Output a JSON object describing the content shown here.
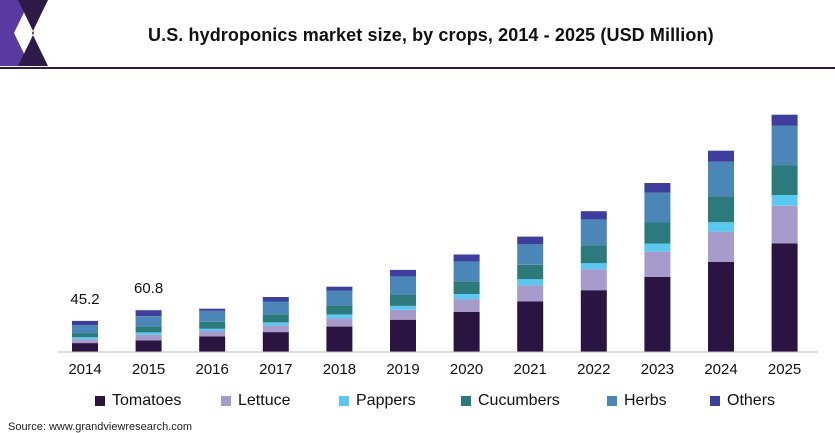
{
  "header": {
    "title": "U.S. hydroponics market size, by crops, 2014 - 2025 (USD Million)"
  },
  "colors": {
    "brand_dark": "#2e1a47",
    "brand_accent": "#5a3aa0",
    "tomatoes": "#2a1542",
    "lettuce": "#a79bcb",
    "pappers": "#5ac8f0",
    "cucumbers": "#2d7a7c",
    "herbs": "#4a86b8",
    "others": "#3e3e9c"
  },
  "chart_data": {
    "type": "bar",
    "stacked": true,
    "title": "U.S. hydroponics market size, by crops, 2014 - 2025 (USD Million)",
    "categories": [
      "2014",
      "2015",
      "2016",
      "2017",
      "2018",
      "2019",
      "2020",
      "2021",
      "2022",
      "2023",
      "2024",
      "2025"
    ],
    "series": [
      {
        "name": "Tomatoes",
        "values": [
          13.0,
          17.0,
          22.5,
          29.0,
          37.0,
          47.0,
          58.5,
          73.5,
          90.0,
          109.5,
          131.0,
          158.0
        ]
      },
      {
        "name": "Lettuce",
        "values": [
          5.5,
          8.0,
          8.0,
          9.5,
          12.0,
          14.5,
          18.5,
          23.5,
          30.5,
          36.5,
          44.0,
          55.0
        ]
      },
      {
        "name": "Pappers",
        "values": [
          3.0,
          3.5,
          3.5,
          4.5,
          5.5,
          5.5,
          7.5,
          9.0,
          9.0,
          12.0,
          14.0,
          15.5
        ]
      },
      {
        "name": "Cucumbers",
        "values": [
          6.0,
          8.5,
          10.0,
          12.0,
          13.0,
          16.5,
          18.0,
          21.0,
          26.0,
          30.5,
          37.5,
          43.5
        ]
      },
      {
        "name": "Herbs",
        "values": [
          11.5,
          15.0,
          16.0,
          18.5,
          22.0,
          26.5,
          29.5,
          30.0,
          37.5,
          43.5,
          50.5,
          57.5
        ]
      },
      {
        "name": "Others",
        "values": [
          6.2,
          8.8,
          3.0,
          6.5,
          5.5,
          9.5,
          10.0,
          11.0,
          12.0,
          14.0,
          16.0,
          16.0
        ]
      }
    ],
    "data_labels": [
      {
        "category": "2014",
        "text": "45.2"
      },
      {
        "category": "2015",
        "text": "60.8"
      }
    ],
    "ylim": [
      0,
      345
    ],
    "grid": false,
    "legend_position": "bottom",
    "xlabel": "",
    "ylabel": ""
  },
  "source": "Source: www.grandviewresearch.com"
}
